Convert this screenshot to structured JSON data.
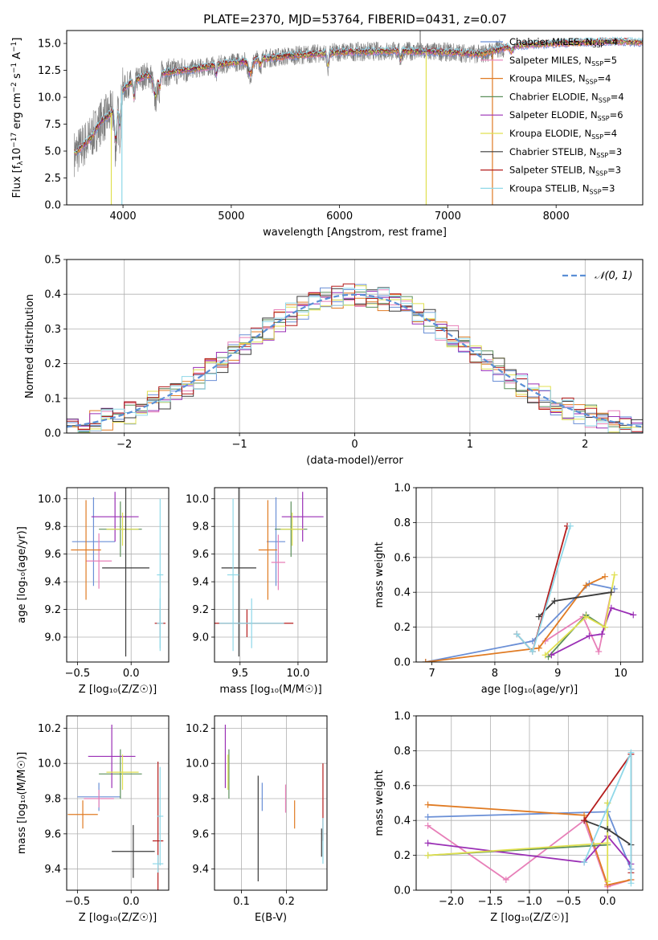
{
  "title": "PLATE=2370, MJD=53764, FIBERID=0431, z=0.07",
  "colors": {
    "Chabrier MILES": "#6a8fd6",
    "Salpeter MILES": "#e77fb8",
    "Kroupa MILES": "#e07b23",
    "Chabrier ELODIE": "#5b8f5b",
    "Salpeter ELODIE": "#9a2fb5",
    "Kroupa ELODIE": "#e0e050",
    "Chabrier STELIB": "#3a3a3a",
    "Salpeter STELIB": "#b51d1d",
    "Kroupa STELIB": "#8fd8e8",
    "data": "#7a7a7a",
    "grid": "#b0b0b0"
  },
  "chart_data": [
    {
      "id": "spectrum",
      "type": "line",
      "xlabel": "wavelength [Angstrom, rest frame]",
      "ylabel_parts": [
        "Flux [f",
        "λ",
        "10",
        "−17",
        " erg cm",
        "−2",
        " s",
        "−1",
        " A",
        "−1",
        "]"
      ],
      "xlim": [
        3480,
        8800
      ],
      "ylim": [
        0,
        16.2
      ],
      "xticks": [
        4000,
        5000,
        6000,
        7000,
        8000
      ],
      "yticks": [
        0.0,
        2.5,
        5.0,
        7.5,
        10.0,
        12.5,
        15.0
      ],
      "ytick_labels": [
        "0.0",
        "2.5",
        "5.0",
        "7.5",
        "10.0",
        "12.5",
        "15.0"
      ],
      "legend_position": "top-right",
      "legend": [
        {
          "name": "Chabrier MILES",
          "n": "4",
          "color_key": "Chabrier MILES"
        },
        {
          "name": "Salpeter MILES",
          "n": "5",
          "color_key": "Salpeter MILES"
        },
        {
          "name": "Kroupa MILES",
          "n": "4",
          "color_key": "Kroupa MILES"
        },
        {
          "name": "Chabrier ELODIE",
          "n": "4",
          "color_key": "Chabrier ELODIE"
        },
        {
          "name": "Salpeter ELODIE",
          "n": "6",
          "color_key": "Salpeter ELODIE"
        },
        {
          "name": "Kroupa ELODIE",
          "n": "4",
          "color_key": "Kroupa ELODIE"
        },
        {
          "name": "Chabrier STELIB",
          "n": "3",
          "color_key": "Chabrier STELIB"
        },
        {
          "name": "Salpeter STELIB",
          "n": "3",
          "color_key": "Salpeter STELIB"
        },
        {
          "name": "Kroupa STELIB",
          "n": "3",
          "color_key": "Kroupa STELIB"
        }
      ],
      "legend_n_prefix": "N",
      "legend_n_sub": "SSP",
      "continuum": [
        [
          3560,
          4.8
        ],
        [
          3700,
          6.2
        ],
        [
          3800,
          7.8
        ],
        [
          3900,
          8.6
        ],
        [
          3960,
          10.3
        ],
        [
          4050,
          11.2
        ],
        [
          4200,
          12.0
        ],
        [
          4400,
          12.3
        ],
        [
          4700,
          12.7
        ],
        [
          5000,
          13.2
        ],
        [
          5300,
          13.6
        ],
        [
          5600,
          13.9
        ],
        [
          6000,
          14.2
        ],
        [
          6500,
          14.3
        ],
        [
          7000,
          14.2
        ],
        [
          7300,
          14.0
        ],
        [
          7600,
          14.8
        ],
        [
          8000,
          15.0
        ],
        [
          8500,
          15.2
        ],
        [
          8800,
          15.1
        ]
      ],
      "absorptions": [
        {
          "x": 3933,
          "depth": 3.5,
          "width": 15
        },
        {
          "x": 3969,
          "depth": 3.0,
          "width": 15
        },
        {
          "x": 4102,
          "depth": 1.5,
          "width": 10
        },
        {
          "x": 4300,
          "depth": 2.0,
          "width": 25
        },
        {
          "x": 4340,
          "depth": 1.2,
          "width": 10
        },
        {
          "x": 4861,
          "depth": 0.8,
          "width": 10
        },
        {
          "x": 5175,
          "depth": 1.2,
          "width": 25
        },
        {
          "x": 5270,
          "depth": 0.6,
          "width": 12
        },
        {
          "x": 5893,
          "depth": 1.2,
          "width": 12
        },
        {
          "x": 6563,
          "depth": 0.7,
          "width": 10
        },
        {
          "x": 7590,
          "depth": 0.5,
          "width": 20
        }
      ],
      "spikes": [
        {
          "x": 3892,
          "to": 0.0,
          "color_key": "Kroupa ELODIE"
        },
        {
          "x": 3990,
          "to": 0.0,
          "color_key": "Kroupa STELIB"
        },
        {
          "x": 6800,
          "to": 0.0,
          "color_key": "Kroupa ELODIE"
        },
        {
          "x": 7412,
          "to": 0.0,
          "color_key": "Kroupa MILES"
        },
        {
          "x": 6745,
          "to": 16.2,
          "color_key": "data"
        }
      ],
      "data_range": [
        3550,
        7520
      ],
      "model_range": [
        3550,
        8800
      ]
    },
    {
      "id": "residuals",
      "type": "histogram",
      "xlabel": "(data-model)/error",
      "ylabel": "Normed distribution",
      "xlim": [
        -2.5,
        2.5
      ],
      "ylim": [
        0,
        0.5
      ],
      "xticks": [
        -2,
        -1,
        0,
        1,
        2
      ],
      "xtick_labels": [
        "−2",
        "−1",
        "0",
        "1",
        "2"
      ],
      "yticks": [
        0.0,
        0.1,
        0.2,
        0.3,
        0.4,
        0.5
      ],
      "ytick_labels": [
        "0.0",
        "0.1",
        "0.2",
        "0.3",
        "0.4",
        "0.5"
      ],
      "bins": 50,
      "gaussian_label": "𝒩(0, 1)",
      "gaussian_color": "#5a8fd6",
      "legend_position": "top-right"
    },
    {
      "id": "age_vs_Z",
      "type": "scatter",
      "xlabel": "Z [log₁₀(Z/Z☉)]",
      "ylabel": "age  [log₁₀(age/yr)]",
      "xlim": [
        -0.6,
        0.35
      ],
      "ylim": [
        8.82,
        10.08
      ],
      "xticks": [
        -0.5,
        0.0
      ],
      "xtick_labels": [
        "−0.5",
        "0.0"
      ],
      "yticks": [
        9.0,
        9.2,
        9.4,
        9.6,
        9.8,
        10.0
      ],
      "ytick_labels": [
        "9.0",
        "9.2",
        "9.4",
        "9.6",
        "9.8",
        "10.0"
      ],
      "points": [
        {
          "x": -0.35,
          "y": 9.69,
          "xerr": 0.2,
          "yerr": 0.32,
          "color_key": "Chabrier MILES"
        },
        {
          "x": -0.3,
          "y": 9.55,
          "xerr": 0.12,
          "yerr": 0.2,
          "color_key": "Salpeter MILES"
        },
        {
          "x": -0.42,
          "y": 9.63,
          "xerr": 0.14,
          "yerr": 0.36,
          "color_key": "Kroupa MILES"
        },
        {
          "x": -0.1,
          "y": 9.78,
          "xerr": 0.2,
          "yerr": 0.2,
          "color_key": "Chabrier ELODIE"
        },
        {
          "x": -0.15,
          "y": 9.87,
          "xerr": 0.22,
          "yerr": 0.18,
          "color_key": "Salpeter ELODIE"
        },
        {
          "x": -0.08,
          "y": 9.78,
          "xerr": 0.15,
          "yerr": 0.12,
          "color_key": "Kroupa ELODIE"
        },
        {
          "x": -0.05,
          "y": 9.5,
          "xerr": 0.22,
          "yerr": 0.64,
          "color_key": "Chabrier STELIB"
        },
        {
          "x": 0.27,
          "y": 9.1,
          "xerr": 0.05,
          "yerr": 0.1,
          "color_key": "Salpeter STELIB"
        },
        {
          "x": 0.27,
          "y": 9.45,
          "xerr": 0.03,
          "yerr": 0.55,
          "color_key": "Kroupa STELIB"
        },
        {
          "x": 0.27,
          "y": 9.1,
          "xerr": 0.03,
          "yerr": 0.18,
          "color_key": "Kroupa STELIB"
        }
      ]
    },
    {
      "id": "age_vs_mass",
      "type": "scatter",
      "xlabel": "mass [log₁₀(M/M☉)]",
      "ylabel": "",
      "xlim": [
        9.28,
        10.25
      ],
      "ylim": [
        8.82,
        10.08
      ],
      "xticks": [
        9.5,
        10.0
      ],
      "xtick_labels": [
        "9.5",
        "10.0"
      ],
      "yticks": [
        9.0,
        9.2,
        9.4,
        9.6,
        9.8,
        10.0
      ],
      "ytick_labels": [
        "9.0",
        "9.2",
        "9.4",
        "9.6",
        "9.8",
        "10.0"
      ],
      "points": [
        {
          "x": 9.81,
          "y": 9.69,
          "xerr": 0.08,
          "yerr": 0.32,
          "color_key": "Chabrier MILES"
        },
        {
          "x": 9.83,
          "y": 9.54,
          "xerr": 0.06,
          "yerr": 0.2,
          "color_key": "Salpeter MILES"
        },
        {
          "x": 9.74,
          "y": 9.63,
          "xerr": 0.08,
          "yerr": 0.36,
          "color_key": "Kroupa MILES"
        },
        {
          "x": 9.94,
          "y": 9.78,
          "xerr": 0.14,
          "yerr": 0.2,
          "color_key": "Chabrier ELODIE"
        },
        {
          "x": 10.04,
          "y": 9.87,
          "xerr": 0.18,
          "yerr": 0.18,
          "color_key": "Salpeter ELODIE"
        },
        {
          "x": 9.95,
          "y": 9.78,
          "xerr": 0.1,
          "yerr": 0.12,
          "color_key": "Kroupa ELODIE"
        },
        {
          "x": 9.49,
          "y": 9.5,
          "xerr": 0.15,
          "yerr": 0.64,
          "color_key": "Chabrier STELIB"
        },
        {
          "x": 9.56,
          "y": 9.1,
          "xerr": 0.4,
          "yerr": 0.1,
          "color_key": "Salpeter STELIB"
        },
        {
          "x": 9.44,
          "y": 9.45,
          "xerr": 0.05,
          "yerr": 0.55,
          "color_key": "Kroupa STELIB"
        },
        {
          "x": 9.6,
          "y": 9.1,
          "xerr": 0.28,
          "yerr": 0.18,
          "color_key": "Kroupa STELIB"
        }
      ]
    },
    {
      "id": "weight_vs_age",
      "type": "line",
      "xlabel": "age  [log₁₀(age/yr)]",
      "ylabel": "mass weight",
      "xlim": [
        6.75,
        10.35
      ],
      "ylim": [
        0,
        1.0
      ],
      "xticks": [
        7,
        8,
        9,
        10
      ],
      "xtick_labels": [
        "7",
        "8",
        "9",
        "10"
      ],
      "yticks": [
        0.0,
        0.2,
        0.4,
        0.6,
        0.8,
        1.0
      ],
      "ytick_labels": [
        "0.0",
        "0.2",
        "0.4",
        "0.6",
        "0.8",
        "1.0"
      ],
      "series": [
        {
          "color_key": "Chabrier MILES",
          "x": [
            6.9,
            8.6,
            9.5,
            9.9
          ],
          "y": [
            0.0,
            0.12,
            0.45,
            0.42
          ]
        },
        {
          "color_key": "Salpeter MILES",
          "x": [
            8.8,
            9.4,
            9.65,
            9.85
          ],
          "y": [
            0.12,
            0.26,
            0.06,
            0.4
          ]
        },
        {
          "color_key": "Kroupa MILES",
          "x": [
            6.9,
            8.7,
            9.45,
            9.75
          ],
          "y": [
            0.0,
            0.08,
            0.44,
            0.49
          ]
        },
        {
          "color_key": "Chabrier ELODIE",
          "x": [
            8.85,
            9.45,
            9.75
          ],
          "y": [
            0.03,
            0.27,
            0.2
          ]
        },
        {
          "color_key": "Salpeter ELODIE",
          "x": [
            8.9,
            9.5,
            9.7,
            9.85,
            10.2
          ],
          "y": [
            0.04,
            0.15,
            0.16,
            0.31,
            0.27
          ]
        },
        {
          "color_key": "Kroupa ELODIE",
          "x": [
            8.8,
            9.45,
            9.75,
            9.9
          ],
          "y": [
            0.04,
            0.26,
            0.2,
            0.5
          ]
        },
        {
          "color_key": "Chabrier STELIB",
          "x": [
            8.7,
            8.95,
            9.85
          ],
          "y": [
            0.26,
            0.35,
            0.4
          ]
        },
        {
          "color_key": "Salpeter STELIB",
          "x": [
            8.35,
            8.6,
            9.15
          ],
          "y": [
            0.16,
            0.06,
            0.78
          ]
        },
        {
          "color_key": "Kroupa STELIB",
          "x": [
            8.35,
            8.6,
            9.2
          ],
          "y": [
            0.16,
            0.06,
            0.78
          ]
        }
      ]
    },
    {
      "id": "mass_vs_Z",
      "type": "scatter",
      "xlabel": "Z [log₁₀(Z/Z☉)]",
      "ylabel": "mass [log₁₀(M/M☉)]",
      "xlim": [
        -0.6,
        0.35
      ],
      "ylim": [
        9.28,
        10.27
      ],
      "xticks": [
        -0.5,
        0.0
      ],
      "xtick_labels": [
        "−0.5",
        "0.0"
      ],
      "yticks": [
        9.4,
        9.6,
        9.8,
        10.0,
        10.2
      ],
      "ytick_labels": [
        "9.4",
        "9.6",
        "9.8",
        "10.0",
        "10.2"
      ],
      "points": [
        {
          "x": -0.3,
          "y": 9.81,
          "xerr": 0.2,
          "yerr": 0.08,
          "color_key": "Chabrier MILES"
        },
        {
          "x": -0.3,
          "y": 9.8,
          "xerr": 0.14,
          "yerr": 0.05,
          "color_key": "Salpeter MILES"
        },
        {
          "x": -0.45,
          "y": 9.71,
          "xerr": 0.14,
          "yerr": 0.08,
          "color_key": "Kroupa MILES"
        },
        {
          "x": -0.1,
          "y": 9.94,
          "xerr": 0.2,
          "yerr": 0.14,
          "color_key": "Chabrier ELODIE"
        },
        {
          "x": -0.18,
          "y": 10.04,
          "xerr": 0.22,
          "yerr": 0.18,
          "color_key": "Salpeter ELODIE"
        },
        {
          "x": -0.08,
          "y": 9.95,
          "xerr": 0.15,
          "yerr": 0.1,
          "color_key": "Kroupa ELODIE"
        },
        {
          "x": 0.02,
          "y": 9.5,
          "xerr": 0.2,
          "yerr": 0.15,
          "color_key": "Chabrier STELIB"
        },
        {
          "x": 0.25,
          "y": 9.56,
          "xerr": 0.05,
          "yerr": 0.45,
          "color_key": "Salpeter STELIB"
        },
        {
          "x": 0.27,
          "y": 9.7,
          "xerr": 0.03,
          "yerr": 0.28,
          "color_key": "Kroupa STELIB"
        },
        {
          "x": 0.25,
          "y": 9.43,
          "xerr": 0.05,
          "yerr": 0.05,
          "color_key": "Kroupa STELIB"
        }
      ]
    },
    {
      "id": "mass_vs_ebv",
      "type": "scatter",
      "xlabel": "E(B-V)",
      "ylabel": "",
      "xlim": [
        0.04,
        0.29
      ],
      "ylim": [
        9.28,
        10.27
      ],
      "xticks": [
        0.1,
        0.2
      ],
      "xtick_labels": [
        "0.1",
        "0.2"
      ],
      "yticks": [
        9.4,
        9.6,
        9.8,
        10.0,
        10.2
      ],
      "ytick_labels": [
        "9.4",
        "9.6",
        "9.8",
        "10.0",
        "10.2"
      ],
      "points": [
        {
          "x": 0.146,
          "y": 9.81,
          "xerr": 0.0,
          "yerr": 0.08,
          "color_key": "Chabrier MILES"
        },
        {
          "x": 0.198,
          "y": 9.8,
          "xerr": 0.0,
          "yerr": 0.08,
          "color_key": "Salpeter MILES"
        },
        {
          "x": 0.218,
          "y": 9.71,
          "xerr": 0.0,
          "yerr": 0.08,
          "color_key": "Kroupa MILES"
        },
        {
          "x": 0.072,
          "y": 9.94,
          "xerr": 0.0,
          "yerr": 0.14,
          "color_key": "Chabrier ELODIE"
        },
        {
          "x": 0.064,
          "y": 10.04,
          "xerr": 0.0,
          "yerr": 0.18,
          "color_key": "Salpeter ELODIE"
        },
        {
          "x": 0.07,
          "y": 9.95,
          "xerr": 0.0,
          "yerr": 0.1,
          "color_key": "Kroupa ELODIE"
        },
        {
          "x": 0.137,
          "y": 9.63,
          "xerr": 0.0,
          "yerr": 0.3,
          "color_key": "Chabrier STELIB"
        },
        {
          "x": 0.281,
          "y": 9.78,
          "xerr": 0.0,
          "yerr": 0.22,
          "color_key": "Salpeter STELIB"
        },
        {
          "x": 0.281,
          "y": 9.56,
          "xerr": 0.0,
          "yerr": 0.13,
          "color_key": "Kroupa STELIB"
        },
        {
          "x": 0.278,
          "y": 9.55,
          "xerr": 0.0,
          "yerr": 0.08,
          "color_key": "Chabrier STELIB"
        }
      ]
    },
    {
      "id": "weight_vs_Z",
      "type": "line",
      "xlabel": "Z [log₁₀(Z/Z☉)]",
      "ylabel": "mass weight",
      "xlim": [
        -2.45,
        0.45
      ],
      "ylim": [
        0,
        1.0
      ],
      "xticks": [
        -2.0,
        -1.5,
        -1.0,
        -0.5,
        0.0
      ],
      "xtick_labels": [
        "−2.0",
        "−1.5",
        "−1.0",
        "−0.5",
        "0.0"
      ],
      "yticks": [
        0.0,
        0.2,
        0.4,
        0.6,
        0.8,
        1.0
      ],
      "ytick_labels": [
        "0.0",
        "0.2",
        "0.4",
        "0.6",
        "0.8",
        "1.0"
      ],
      "series": [
        {
          "color_key": "Chabrier MILES",
          "x": [
            -2.3,
            0.0,
            0.3
          ],
          "y": [
            0.42,
            0.45,
            0.12
          ]
        },
        {
          "color_key": "Salpeter MILES",
          "x": [
            -2.3,
            -1.3,
            -0.3,
            0.0,
            0.3
          ],
          "y": [
            0.37,
            0.06,
            0.4,
            0.02,
            0.06
          ]
        },
        {
          "color_key": "Kroupa MILES",
          "x": [
            -2.3,
            -0.3,
            0.0,
            0.3
          ],
          "y": [
            0.49,
            0.43,
            0.03,
            0.06
          ]
        },
        {
          "color_key": "Chabrier ELODIE",
          "x": [
            -2.3,
            0.0,
            0.0
          ],
          "y": [
            0.2,
            0.26,
            0.5
          ]
        },
        {
          "color_key": "Salpeter ELODIE",
          "x": [
            -2.3,
            -0.3,
            0.0,
            0.3
          ],
          "y": [
            0.27,
            0.16,
            0.31,
            0.15
          ]
        },
        {
          "color_key": "Kroupa ELODIE",
          "x": [
            -2.3,
            0.0,
            0.0,
            0.0
          ],
          "y": [
            0.2,
            0.27,
            0.05,
            0.5
          ]
        },
        {
          "color_key": "Chabrier STELIB",
          "x": [
            -0.3,
            0.0,
            0.3
          ],
          "y": [
            0.4,
            0.35,
            0.26
          ]
        },
        {
          "color_key": "Salpeter STELIB",
          "x": [
            -0.3,
            0.3,
            0.3
          ],
          "y": [
            0.4,
            0.78,
            0.1
          ]
        },
        {
          "color_key": "Kroupa STELIB",
          "x": [
            -0.3,
            0.3,
            0.3
          ],
          "y": [
            0.16,
            0.79,
            0.04
          ]
        }
      ]
    }
  ]
}
